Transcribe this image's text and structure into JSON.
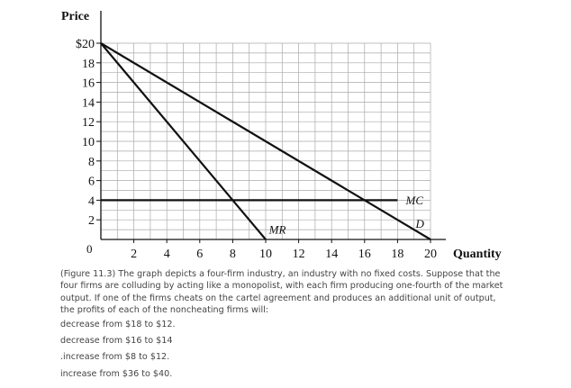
{
  "chart_data": {
    "type": "line",
    "ylabel": "Price",
    "xlabel": "Quantity",
    "xlim": [
      0,
      20
    ],
    "ylim": [
      0,
      20
    ],
    "origin_label": "0",
    "x_ticks": [
      "2",
      "4",
      "6",
      "8",
      "10",
      "12",
      "14",
      "16",
      "18",
      "20"
    ],
    "y_ticks": [
      "$20",
      "18",
      "16",
      "14",
      "12",
      "10",
      "8",
      "6",
      "4",
      "2"
    ],
    "grid": true,
    "series": [
      {
        "name": "D",
        "points": [
          [
            0,
            20
          ],
          [
            20,
            0
          ]
        ]
      },
      {
        "name": "MR",
        "points": [
          [
            0,
            20
          ],
          [
            10,
            0
          ]
        ]
      },
      {
        "name": "MC",
        "points": [
          [
            0,
            4
          ],
          [
            18,
            4
          ]
        ]
      }
    ]
  },
  "question": {
    "text": "(Figure 11.3) The graph depicts a four-firm industry, an industry with no fixed costs. Suppose that the four firms are colluding by acting like a monopolist, with each firm producing one-fourth of the market output. If one of the firms cheats on the cartel agreement and produces an additional unit of output, the profits of each of the noncheating firms will:",
    "options": [
      "decrease from $18 to $12.",
      "decrease from $16 to $14",
      ".increase from $8 to $12.",
      "increase from $36 to $40."
    ]
  }
}
